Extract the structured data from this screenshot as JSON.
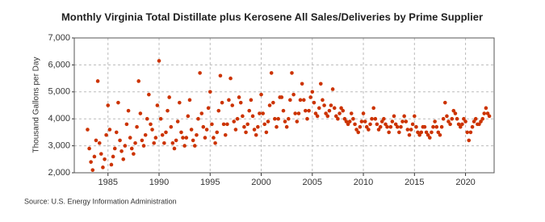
{
  "chart_data": {
    "type": "scatter",
    "title": "Monthly Virginia Total Distillate plus Kerosene All Sales/Deliveries by Prime Supplier",
    "y_label": "Thousand Gallons per Day",
    "source": "Source: U.S. Energy Information Administration",
    "color": "#cc3300",
    "grid": true,
    "xlim": [
      1981.7,
      2022.8
    ],
    "xticks": [
      1985,
      1990,
      1995,
      2000,
      2005,
      2010,
      2015,
      2020
    ],
    "ylim": [
      2000,
      7000
    ],
    "yticks": [
      {
        "value": 2000,
        "label": "2,000"
      },
      {
        "value": 3000,
        "label": "3,000"
      },
      {
        "value": 4000,
        "label": "4,000"
      },
      {
        "value": 5000,
        "label": "5,000"
      },
      {
        "value": 6000,
        "label": "6,000"
      },
      {
        "value": 7000,
        "label": "7,000"
      }
    ],
    "x": [
      1983,
      1983.17,
      1983.33,
      1983.5,
      1983.67,
      1983.83,
      1984,
      1984.17,
      1984.33,
      1984.5,
      1984.67,
      1984.83,
      1985,
      1985.17,
      1985.33,
      1985.5,
      1985.67,
      1985.83,
      1986,
      1986.17,
      1986.33,
      1986.5,
      1986.67,
      1986.83,
      1987,
      1987.17,
      1987.33,
      1987.5,
      1987.67,
      1987.83,
      1988,
      1988.17,
      1988.33,
      1988.5,
      1988.67,
      1988.83,
      1989,
      1989.17,
      1989.33,
      1989.5,
      1989.67,
      1989.83,
      1990,
      1990.17,
      1990.33,
      1990.5,
      1990.67,
      1990.83,
      1991,
      1991.17,
      1991.33,
      1991.5,
      1991.67,
      1991.83,
      1992,
      1992.17,
      1992.33,
      1992.5,
      1992.67,
      1992.83,
      1993,
      1993.17,
      1993.33,
      1993.5,
      1993.67,
      1993.83,
      1994,
      1994.17,
      1994.33,
      1994.5,
      1994.67,
      1994.83,
      1995,
      1995.17,
      1995.33,
      1995.5,
      1995.67,
      1995.83,
      1996,
      1996.17,
      1996.33,
      1996.5,
      1996.67,
      1996.83,
      1997,
      1997.17,
      1997.33,
      1997.5,
      1997.67,
      1997.83,
      1998,
      1998.17,
      1998.33,
      1998.5,
      1998.67,
      1998.83,
      1999,
      1999.17,
      1999.33,
      1999.5,
      1999.67,
      1999.83,
      2000,
      2000.17,
      2000.33,
      2000.5,
      2000.67,
      2000.83,
      2001,
      2001.17,
      2001.33,
      2001.5,
      2001.67,
      2001.83,
      2002,
      2002.17,
      2002.33,
      2002.5,
      2002.67,
      2002.83,
      2003,
      2003.17,
      2003.33,
      2003.5,
      2003.67,
      2003.83,
      2004,
      2004.17,
      2004.33,
      2004.5,
      2004.67,
      2004.83,
      2005,
      2005.17,
      2005.33,
      2005.5,
      2005.67,
      2005.83,
      2006,
      2006.17,
      2006.33,
      2006.5,
      2006.67,
      2006.83,
      2007,
      2007.17,
      2007.33,
      2007.5,
      2007.67,
      2007.83,
      2008,
      2008.17,
      2008.33,
      2008.5,
      2008.67,
      2008.83,
      2009,
      2009.17,
      2009.33,
      2009.5,
      2009.67,
      2009.83,
      2010,
      2010.17,
      2010.33,
      2010.5,
      2010.67,
      2010.83,
      2011,
      2011.17,
      2011.33,
      2011.5,
      2011.67,
      2011.83,
      2012,
      2012.17,
      2012.33,
      2012.5,
      2012.67,
      2012.83,
      2013,
      2013.17,
      2013.33,
      2013.5,
      2013.67,
      2013.83,
      2014,
      2014.17,
      2014.33,
      2014.5,
      2014.67,
      2014.83,
      2015,
      2015.17,
      2015.33,
      2015.5,
      2015.67,
      2015.83,
      2016,
      2016.17,
      2016.33,
      2016.5,
      2016.67,
      2016.83,
      2017,
      2017.17,
      2017.33,
      2017.5,
      2017.67,
      2017.83,
      2018,
      2018.17,
      2018.33,
      2018.5,
      2018.67,
      2018.83,
      2019,
      2019.17,
      2019.33,
      2019.5,
      2019.67,
      2019.83,
      2020,
      2020.17,
      2020.33,
      2020.5,
      2020.67,
      2020.83,
      2021,
      2021.17,
      2021.33,
      2021.5,
      2021.67,
      2021.83,
      2022,
      2022.17,
      2022.33
    ],
    "values": [
      3600,
      2900,
      2400,
      2100,
      2600,
      3200,
      5400,
      3100,
      2700,
      2200,
      2500,
      3400,
      4500,
      3600,
      2300,
      2600,
      2900,
      3500,
      4600,
      3200,
      2800,
      2500,
      3000,
      3800,
      4300,
      3300,
      2900,
      2700,
      3100,
      3700,
      5400,
      4200,
      3200,
      3000,
      3400,
      4000,
      4900,
      3800,
      3600,
      3100,
      3300,
      4500,
      6150,
      4000,
      3400,
      3100,
      3500,
      4300,
      4800,
      3700,
      3100,
      2900,
      3200,
      3900,
      4600,
      3500,
      3300,
      3000,
      3300,
      4100,
      4700,
      3600,
      3200,
      3000,
      3400,
      4000,
      5700,
      4200,
      3700,
      3300,
      3600,
      4400,
      5000,
      3800,
      3300,
      3100,
      3500,
      4300,
      5600,
      4600,
      3800,
      3400,
      3800,
      4700,
      5500,
      4500,
      3900,
      3600,
      4000,
      4800,
      4600,
      4100,
      3700,
      3500,
      3800,
      4300,
      4700,
      4100,
      3600,
      3400,
      3700,
      4200,
      4900,
      4200,
      3800,
      3500,
      3900,
      4500,
      5700,
      4600,
      4000,
      3700,
      4000,
      4800,
      4800,
      4300,
      3900,
      3700,
      4000,
      4700,
      5700,
      4900,
      4200,
      3900,
      4200,
      4700,
      5300,
      4700,
      4300,
      4000,
      4300,
      4800,
      5000,
      4600,
      4200,
      4100,
      4400,
      5300,
      4700,
      4500,
      4200,
      4100,
      4300,
      4500,
      5100,
      4400,
      4100,
      4000,
      4200,
      4400,
      4300,
      4000,
      3900,
      3800,
      3900,
      4200,
      4000,
      3800,
      3600,
      3500,
      3700,
      3900,
      4200,
      3900,
      3700,
      3600,
      3800,
      4000,
      4400,
      4000,
      3800,
      3600,
      3700,
      3900,
      4000,
      3800,
      3700,
      3500,
      3700,
      3900,
      4100,
      3800,
      3700,
      3500,
      3700,
      3900,
      4100,
      3900,
      3600,
      3400,
      3600,
      3800,
      4100,
      3700,
      3500,
      3400,
      3500,
      3700,
      3700,
      3500,
      3400,
      3300,
      3500,
      3700,
      3900,
      3700,
      3500,
      3400,
      3700,
      4000,
      4600,
      4100,
      3900,
      3800,
      4000,
      4300,
      4200,
      4000,
      3800,
      3700,
      3800,
      4000,
      3900,
      3500,
      3200,
      3500,
      3700,
      3900,
      4000,
      3800,
      3800,
      3900,
      4000,
      4200,
      4400,
      4200,
      4100
    ]
  }
}
